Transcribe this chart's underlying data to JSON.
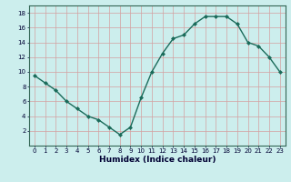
{
  "x": [
    0,
    1,
    2,
    3,
    4,
    5,
    6,
    7,
    8,
    9,
    10,
    11,
    12,
    13,
    14,
    15,
    16,
    17,
    18,
    19,
    20,
    21,
    22,
    23
  ],
  "y": [
    9.5,
    8.5,
    7.5,
    6.0,
    5.0,
    4.0,
    3.5,
    2.5,
    1.5,
    2.5,
    6.5,
    10.0,
    12.5,
    14.5,
    15.0,
    16.5,
    17.5,
    17.5,
    17.5,
    16.5,
    14.0,
    13.5,
    12.0,
    10.0
  ],
  "line_color": "#1a6b5a",
  "marker": "D",
  "marker_size": 2.0,
  "xlabel": "Humidex (Indice chaleur)",
  "xlim": [
    -0.5,
    23.5
  ],
  "ylim": [
    0,
    19
  ],
  "yticks": [
    2,
    4,
    6,
    8,
    10,
    12,
    14,
    16,
    18
  ],
  "xticks": [
    0,
    1,
    2,
    3,
    4,
    5,
    6,
    7,
    8,
    9,
    10,
    11,
    12,
    13,
    14,
    15,
    16,
    17,
    18,
    19,
    20,
    21,
    22,
    23
  ],
  "bg_color": "#cceeed",
  "grid_color_v": "#d4a0a0",
  "grid_color_h": "#d4a0a0",
  "linewidth": 1.0,
  "xlabel_fontsize": 6.5,
  "tick_fontsize": 5.0
}
